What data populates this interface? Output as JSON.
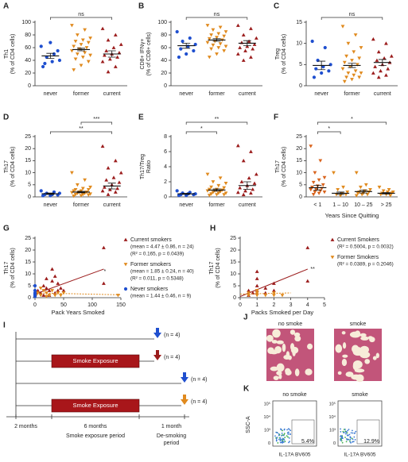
{
  "chart_data": [
    {
      "type": "dotplot",
      "panel": "A",
      "ylabel": [
        "Th1",
        "(% of CD4 cells)"
      ],
      "categories": [
        "never",
        "former",
        "current"
      ],
      "ylim": [
        0,
        100
      ],
      "yticks": [
        0,
        20,
        40,
        60,
        80,
        100
      ],
      "groups": [
        {
          "color": "#1f4fcf",
          "marker": "circle",
          "values": [
            62,
            50,
            45,
            40,
            38,
            35,
            55,
            68,
            30
          ],
          "mean": 47,
          "sem": 4
        },
        {
          "color": "#e08a1e",
          "marker": "down",
          "values": [
            95,
            88,
            80,
            75,
            72,
            70,
            68,
            65,
            62,
            60,
            58,
            55,
            52,
            50,
            48,
            45,
            42,
            38,
            32,
            25
          ],
          "mean": 57,
          "sem": 2
        },
        {
          "color": "#9b1c1c",
          "marker": "up",
          "values": [
            90,
            80,
            72,
            65,
            60,
            55,
            52,
            50,
            48,
            45,
            42,
            38,
            30,
            22
          ],
          "mean": 50,
          "sem": 5
        }
      ],
      "brackets": [
        {
          "label": "ns",
          "categories": [
            "never",
            "current"
          ]
        }
      ]
    },
    {
      "type": "dotplot",
      "panel": "B",
      "ylabel": [
        "CD8+ IFNγ+",
        "(% of CD8+ cells)"
      ],
      "categories": [
        "never",
        "former",
        "current"
      ],
      "ylim": [
        0,
        100
      ],
      "yticks": [
        0,
        20,
        40,
        60,
        80,
        100
      ],
      "groups": [
        {
          "color": "#1f4fcf",
          "marker": "circle",
          "values": [
            85,
            75,
            70,
            65,
            62,
            58,
            55,
            50,
            45
          ],
          "mean": 63,
          "sem": 4
        },
        {
          "color": "#e08a1e",
          "marker": "down",
          "values": [
            95,
            92,
            88,
            85,
            82,
            80,
            78,
            76,
            74,
            72,
            70,
            68,
            66,
            64,
            62,
            60,
            58,
            55,
            50,
            45
          ],
          "mean": 72,
          "sem": 2
        },
        {
          "color": "#9b1c1c",
          "marker": "up",
          "values": [
            95,
            90,
            80,
            75,
            70,
            68,
            65,
            62,
            60,
            58,
            55,
            50,
            45,
            40
          ],
          "mean": 67,
          "sem": 4
        }
      ],
      "brackets": [
        {
          "label": "ns",
          "categories": [
            "never",
            "current"
          ]
        }
      ]
    },
    {
      "type": "dotplot",
      "panel": "C",
      "ylabel": [
        "Treg",
        "(% of CD4 cells)"
      ],
      "categories": [
        "never",
        "former",
        "current"
      ],
      "ylim": [
        0,
        15
      ],
      "yticks": [
        0,
        5,
        10,
        15
      ],
      "groups": [
        {
          "color": "#1f4fcf",
          "marker": "circle",
          "values": [
            10.5,
            9,
            6,
            5,
            4.5,
            4,
            3.5,
            3,
            2
          ],
          "mean": 4.8,
          "sem": 1
        },
        {
          "color": "#e08a1e",
          "marker": "down",
          "values": [
            14,
            12,
            10,
            9,
            8,
            7,
            6.5,
            6,
            5.5,
            5,
            4.5,
            4,
            3.5,
            3,
            3,
            2.5,
            2,
            2,
            1.5,
            1
          ],
          "mean": 4.8,
          "sem": 0.5
        },
        {
          "color": "#9b1c1c",
          "marker": "up",
          "values": [
            11,
            10,
            8,
            7,
            6.5,
            6,
            5.5,
            5,
            4.5,
            4,
            3.5,
            3,
            2.5,
            2
          ],
          "mean": 5.5,
          "sem": 0.7
        }
      ],
      "brackets": [
        {
          "label": "ns",
          "categories": [
            "never",
            "current"
          ]
        }
      ]
    },
    {
      "type": "dotplot",
      "panel": "D",
      "ylabel": [
        "Th17",
        "(% of CD4 cells)"
      ],
      "categories": [
        "never",
        "former",
        "current"
      ],
      "ylim": [
        0,
        25
      ],
      "yticks": [
        0,
        5,
        10,
        15,
        20,
        25
      ],
      "groups": [
        {
          "color": "#1f4fcf",
          "marker": "circle",
          "values": [
            2.5,
            2,
            1.5,
            1.5,
            1,
            1,
            0.8,
            0.5,
            0.5
          ],
          "mean": 1.3,
          "sem": 0.3
        },
        {
          "color": "#e08a1e",
          "marker": "down",
          "values": [
            10,
            7,
            5,
            4,
            3.5,
            3,
            3,
            2.5,
            2.5,
            2,
            2,
            1.8,
            1.5,
            1.5,
            1.2,
            1,
            1,
            0.8,
            0.5,
            0.3
          ],
          "mean": 2,
          "sem": 0.3
        },
        {
          "color": "#9b1c1c",
          "marker": "up",
          "values": [
            21,
            15,
            12,
            10,
            8,
            7,
            6,
            5,
            4,
            3.5,
            3,
            2.5,
            2,
            1
          ],
          "mean": 4.5,
          "sem": 1.2
        }
      ],
      "brackets": [
        {
          "label": "**",
          "categories": [
            "never",
            "current"
          ]
        },
        {
          "label": "***",
          "categories": [
            "former",
            "current"
          ]
        }
      ]
    },
    {
      "type": "dotplot",
      "panel": "E",
      "ylabel": [
        "Th17/Treg",
        "Ratio"
      ],
      "categories": [
        "never",
        "former",
        "current"
      ],
      "ylim": [
        0,
        8
      ],
      "yticks": [
        0,
        2,
        4,
        6,
        8
      ],
      "groups": [
        {
          "color": "#1f4fcf",
          "marker": "circle",
          "values": [
            0.8,
            0.6,
            0.5,
            0.4,
            0.4,
            0.3,
            0.3,
            0.2,
            0.2
          ],
          "mean": 0.4,
          "sem": 0.07
        },
        {
          "color": "#e08a1e",
          "marker": "down",
          "values": [
            3,
            2.5,
            2,
            1.8,
            1.5,
            1.3,
            1.2,
            1,
            1,
            0.9,
            0.8,
            0.8,
            0.7,
            0.6,
            0.5,
            0.5,
            0.4,
            0.3,
            0.3,
            0.2
          ],
          "mean": 0.9,
          "sem": 0.15
        },
        {
          "color": "#9b1c1c",
          "marker": "up",
          "values": [
            6.8,
            6,
            4.8,
            3,
            2.5,
            2,
            1.8,
            1.5,
            1.2,
            1,
            0.8,
            0.6,
            0.5,
            0.3
          ],
          "mean": 1.5,
          "sem": 0.5
        }
      ],
      "brackets": [
        {
          "label": "*",
          "categories": [
            "never",
            "former"
          ]
        },
        {
          "label": "**",
          "categories": [
            "never",
            "current"
          ]
        }
      ]
    },
    {
      "type": "dotplot",
      "panel": "F",
      "ylabel": [
        "Th17",
        "(% of CD4 cells)"
      ],
      "xlabel": "Years Since Quitting",
      "categories": [
        "< 1",
        "1 – 10",
        "10 – 25",
        "> 25"
      ],
      "ylim": [
        0,
        25
      ],
      "yticks": [
        0,
        5,
        10,
        15,
        20,
        25
      ],
      "groups": [
        {
          "color": "#d9641e",
          "marker": "down",
          "values": [
            21,
            15,
            10,
            8,
            7,
            6,
            5,
            4.5,
            4,
            3.5,
            3,
            3,
            2.5,
            2,
            2,
            1.5,
            1
          ],
          "mean": 3.8,
          "sem": 1
        },
        {
          "color": "#e08a1e",
          "marker": "down",
          "values": [
            10,
            4,
            3,
            2,
            1.5,
            1,
            1,
            0.5
          ],
          "mean": 1.5,
          "sem": 0.5
        },
        {
          "color": "#e08a1e",
          "marker": "down",
          "values": [
            10,
            5,
            4,
            3,
            2.5,
            2,
            2,
            1.5,
            1.5,
            1,
            1,
            0.5
          ],
          "mean": 2.2,
          "sem": 0.6
        },
        {
          "color": "#e08a1e",
          "marker": "down",
          "values": [
            4,
            3,
            2.5,
            2,
            2,
            1.5,
            1.5,
            1,
            1,
            0.5
          ],
          "mean": 1.5,
          "sem": 0.3
        }
      ],
      "brackets": [
        {
          "label": "*",
          "categories": [
            "< 1",
            "1 – 10"
          ]
        },
        {
          "label": "*",
          "categories": [
            "< 1",
            "> 25"
          ]
        }
      ]
    },
    {
      "type": "scatter",
      "panel": "G",
      "ylabel": [
        "Th17",
        "(% of CD4 cells)"
      ],
      "xlabel": "Pack Years Smoked",
      "xlim": [
        0,
        150
      ],
      "xticks": [
        0,
        50,
        100,
        150
      ],
      "ylim": [
        0,
        25
      ],
      "yticks": [
        0,
        5,
        10,
        15,
        20,
        25
      ],
      "series": [
        {
          "name": "Current smokers",
          "stats": [
            "(mean = 4.47 ± 0.86, n = 24)",
            "(R² = 0.165, p = 0.0439)"
          ],
          "color": "#9b1c1c",
          "marker": "up",
          "x": [
            5,
            10,
            15,
            20,
            25,
            30,
            30,
            35,
            40,
            45,
            50,
            20,
            25,
            120,
            120,
            35,
            15,
            40
          ],
          "y": [
            3,
            2,
            5,
            4,
            3,
            7,
            12,
            2,
            6,
            4,
            3,
            8,
            1,
            21,
            6,
            9,
            1,
            3
          ],
          "fit": {
            "x": [
              0,
              120
            ],
            "y": [
              1.5,
              12
            ]
          }
        },
        {
          "name": "Former smokers",
          "stats": [
            "(mean = 1.85 ± 0.24, n = 40)",
            "(R² = 0.011, p = 0.5348)"
          ],
          "color": "#e08a1e",
          "marker": "down",
          "x": [
            2,
            5,
            10,
            15,
            20,
            25,
            30,
            35,
            40,
            45,
            50,
            10,
            20,
            145
          ],
          "y": [
            1,
            2,
            1,
            3,
            2,
            1,
            3,
            1,
            2,
            1,
            2,
            4,
            0.5,
            1
          ],
          "fit": {
            "x": [
              0,
              150
            ],
            "y": [
              2,
              1.2
            ]
          }
        },
        {
          "name": "Never smokers",
          "stats": [
            "(mean = 1.44 ± 0.46, n = 9)"
          ],
          "color": "#1f4fcf",
          "marker": "circle",
          "x": [
            0,
            0,
            0,
            0,
            0,
            0
          ],
          "y": [
            1,
            2,
            5,
            0.5,
            3,
            1.5
          ]
        }
      ],
      "annotations": [
        {
          "text": "*",
          "x": 122,
          "y": 11
        }
      ]
    },
    {
      "type": "scatter",
      "panel": "H",
      "ylabel": [
        "Th17",
        "(% of CD4 cells)"
      ],
      "xlabel": "Packs Smoked per Day",
      "xlim": [
        0,
        5
      ],
      "xticks": [
        0,
        1,
        2,
        3,
        4,
        5
      ],
      "ylim": [
        0,
        25
      ],
      "yticks": [
        0,
        5,
        10,
        15,
        20,
        25
      ],
      "series": [
        {
          "name": "Current Smokers",
          "stats": [
            "(R² = 0.5004, p = 0.0032)"
          ],
          "color": "#9b1c1c",
          "marker": "up",
          "x": [
            0.5,
            1,
            1,
            1,
            0.5,
            1,
            1.5,
            2,
            2,
            1,
            4,
            4,
            1.5,
            0.75
          ],
          "y": [
            3,
            2,
            5,
            8,
            1,
            11,
            4,
            6,
            3,
            3,
            21,
            7,
            2,
            2
          ],
          "fit": {
            "x": [
              0,
              4
            ],
            "y": [
              0.5,
              12
            ]
          }
        },
        {
          "name": "Former Smokers",
          "stats": [
            "(R² = 0.0389, p = 0.2046)"
          ],
          "color": "#e08a1e",
          "marker": "down",
          "x": [
            0.5,
            1,
            1,
            1.5,
            2,
            2,
            0.5,
            1,
            2.5
          ],
          "y": [
            1,
            2,
            3,
            1,
            2,
            1,
            2,
            1,
            1
          ],
          "fit": {
            "x": [
              0,
              3
            ],
            "y": [
              1.5,
              2
            ]
          }
        }
      ],
      "annotations": [
        {
          "text": "**",
          "x": 4.3,
          "y": 12
        }
      ]
    }
  ],
  "panels": {
    "I": {
      "letter": "I",
      "rows": [
        {
          "n": "(n = 4)"
        },
        {
          "bar": "Smoke Exposure",
          "n": "(n = 4)"
        },
        {
          "n": "(n = 4)"
        },
        {
          "bar": "Smoke Exposure",
          "n": "(n = 4)"
        }
      ],
      "periods": [
        {
          "duration": "2 months"
        },
        {
          "duration": "6 months",
          "label": [
            "Smoke exposure period"
          ]
        },
        {
          "duration": "1 month",
          "label": [
            "De-smoking",
            "period"
          ]
        }
      ]
    },
    "J": {
      "letter": "J",
      "images": [
        {
          "label": "no smoke"
        },
        {
          "label": "smoke"
        }
      ]
    },
    "K": {
      "letter": "K",
      "ylabel": "SSC-A",
      "plots": [
        {
          "label": "no smoke",
          "yticks": [
            "10⁵",
            "10⁴",
            "10³",
            "0"
          ],
          "xlabel": "IL-17A BV605",
          "gate": "5.4%"
        },
        {
          "label": "smoke",
          "yticks": [
            "10⁵",
            "10⁴",
            "10³",
            "0"
          ],
          "xlabel": "IL-17A BV605",
          "gate": "12.9%"
        }
      ]
    }
  }
}
